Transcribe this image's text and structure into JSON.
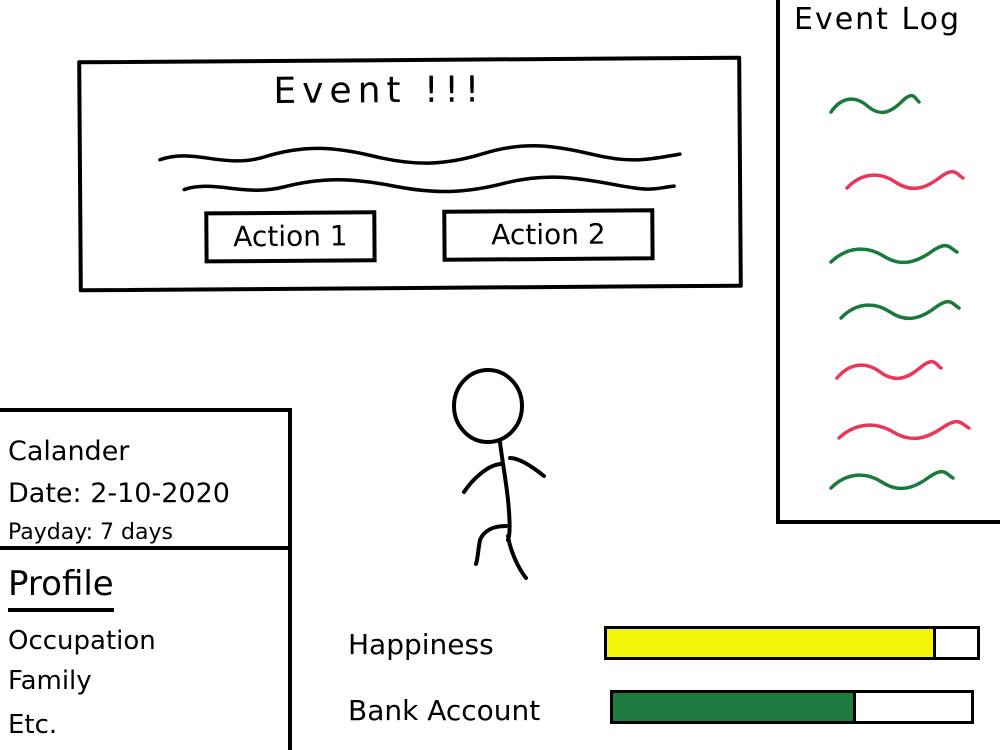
{
  "event": {
    "title": "Event !!!",
    "actions": [
      {
        "label": "Action 1"
      },
      {
        "label": "Action 2"
      }
    ]
  },
  "event_log": {
    "title": "Event Log",
    "entries": [
      {
        "color": "#1a7a3c"
      },
      {
        "color": "#e8385a"
      },
      {
        "color": "#1a7a3c"
      },
      {
        "color": "#1a7a3c"
      },
      {
        "color": "#e8385a"
      },
      {
        "color": "#e8385a"
      },
      {
        "color": "#1a7a3c"
      }
    ]
  },
  "calendar": {
    "title": "Calander",
    "date": "Date: 2-10-2020",
    "payday": "Payday: 7 days"
  },
  "profile": {
    "title": "Profile",
    "items": [
      "Occupation",
      "Family",
      "Etc."
    ]
  },
  "stats": {
    "happiness": {
      "label": "Happiness",
      "fill": 0.89,
      "color": "#f5f50a"
    },
    "bank_account": {
      "label": "Bank Account",
      "fill": 0.68,
      "color": "#1e7a3e"
    }
  }
}
